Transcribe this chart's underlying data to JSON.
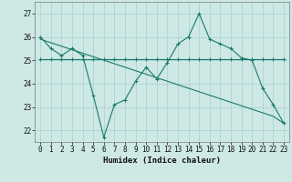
{
  "xlabel": "Humidex (Indice chaleur)",
  "ylabel": "",
  "x_values": [
    0,
    1,
    2,
    3,
    4,
    5,
    6,
    7,
    8,
    9,
    10,
    11,
    12,
    13,
    14,
    15,
    16,
    17,
    18,
    19,
    20,
    21,
    22,
    23
  ],
  "y_main": [
    26.0,
    25.5,
    25.2,
    25.5,
    25.2,
    23.5,
    21.7,
    23.1,
    23.3,
    24.1,
    24.7,
    24.2,
    24.9,
    25.7,
    26.0,
    27.0,
    25.9,
    25.7,
    25.5,
    25.1,
    25.0,
    23.8,
    23.1,
    22.3
  ],
  "y_trend": [
    25.05,
    25.05,
    25.05,
    25.05,
    25.05,
    25.05,
    25.05,
    25.05,
    25.05,
    25.05,
    25.05,
    25.05,
    25.05,
    25.05,
    25.05,
    25.05,
    25.05,
    25.05,
    25.05,
    25.05,
    25.05,
    25.05,
    25.05,
    25.05
  ],
  "y_linear": [
    25.9,
    25.75,
    25.6,
    25.45,
    25.3,
    25.15,
    25.0,
    24.85,
    24.7,
    24.55,
    24.4,
    24.25,
    24.1,
    23.95,
    23.8,
    23.65,
    23.5,
    23.35,
    23.2,
    23.05,
    22.9,
    22.75,
    22.6,
    22.3
  ],
  "ylim": [
    21.5,
    27.5
  ],
  "xlim": [
    -0.5,
    23.5
  ],
  "yticks": [
    22,
    23,
    24,
    25,
    26,
    27
  ],
  "xticks": [
    0,
    1,
    2,
    3,
    4,
    5,
    6,
    7,
    8,
    9,
    10,
    11,
    12,
    13,
    14,
    15,
    16,
    17,
    18,
    19,
    20,
    21,
    22,
    23
  ],
  "line_color": "#1a7a6e",
  "bg_color": "#cde8e5",
  "grid_color": "#a8d0cc",
  "tick_fontsize": 5.5,
  "label_fontsize": 6.5
}
